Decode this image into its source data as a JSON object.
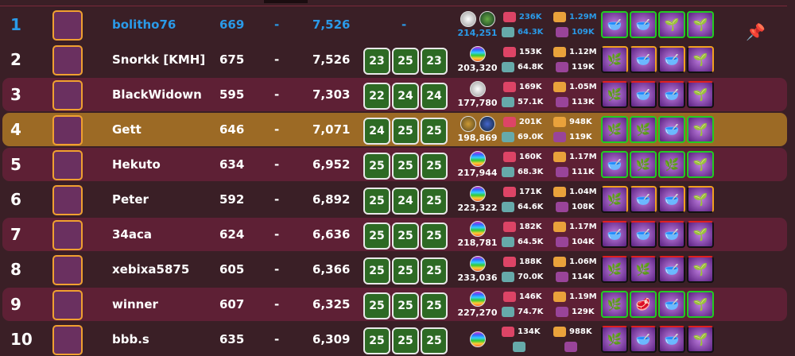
{
  "colors": {
    "row_bg": "#3a1f26",
    "row_alt": "#5e2035",
    "row_self": "#9c6a25",
    "self_text": "#2a9ae8",
    "box_green": "#2d6a24"
  },
  "rows": [
    {
      "rank": "1",
      "name": "bolitho76",
      "flag": "germany",
      "score": "669",
      "dash": "-",
      "points": "7,526",
      "boxes": [
        "-"
      ],
      "orbs": [
        "silver",
        "green"
      ],
      "orb_value": "214,251",
      "stat1": "236K",
      "stat2": "64.3K",
      "stat3": "1.29M",
      "stat4": "109K",
      "items": [
        "bowl",
        "bowl",
        "root",
        "root"
      ],
      "frame": "g",
      "self": true,
      "pinned": true
    },
    {
      "rank": "2",
      "name": "Snorkk [KMH]",
      "flag": "mexico",
      "score": "675",
      "dash": "-",
      "points": "7,526",
      "boxes": [
        "23",
        "25",
        "23"
      ],
      "orbs": [
        "rainbow"
      ],
      "orb_value": "203,320",
      "stat1": "153K",
      "stat2": "64.8K",
      "stat3": "1.12M",
      "stat4": "119K",
      "items": [
        "herb",
        "bowl",
        "bowl",
        "root"
      ],
      "frame": "o"
    },
    {
      "rank": "3",
      "name": "BlackWidown",
      "flag": "vietnam",
      "score": "595",
      "dash": "-",
      "points": "7,303",
      "boxes": [
        "22",
        "24",
        "24"
      ],
      "orbs": [
        "silver"
      ],
      "orb_value": "177,780",
      "stat1": "169K",
      "stat2": "57.1K",
      "stat3": "1.05M",
      "stat4": "113K",
      "items": [
        "herb",
        "bowl",
        "bowl",
        "root"
      ],
      "frame": "r"
    },
    {
      "rank": "4",
      "name": "Gett",
      "flag": "turkey",
      "score": "646",
      "dash": "-",
      "points": "7,071",
      "boxes": [
        "24",
        "25",
        "25"
      ],
      "orbs": [
        "gold",
        "blue"
      ],
      "orb_value": "198,869",
      "stat1": "201K",
      "stat2": "69.0K",
      "stat3": "948K",
      "stat4": "119K",
      "items": [
        "herb",
        "herb",
        "bowl",
        "root"
      ],
      "frame": "g",
      "highlight": true
    },
    {
      "rank": "5",
      "name": "Hekuto",
      "flag": "chile",
      "score": "634",
      "dash": "-",
      "points": "6,952",
      "boxes": [
        "25",
        "25",
        "25"
      ],
      "orbs": [
        "rainbow"
      ],
      "orb_value": "217,944",
      "stat1": "160K",
      "stat2": "68.3K",
      "stat3": "1.17M",
      "stat4": "111K",
      "items": [
        "bowl",
        "herb",
        "herb",
        "root"
      ],
      "frame": "g"
    },
    {
      "rank": "6",
      "name": "Peter",
      "flag": "france",
      "score": "592",
      "dash": "-",
      "points": "6,892",
      "boxes": [
        "25",
        "24",
        "25"
      ],
      "orbs": [
        "rainbow"
      ],
      "orb_value": "223,322",
      "stat1": "171K",
      "stat2": "64.6K",
      "stat3": "1.04M",
      "stat4": "108K",
      "items": [
        "herb",
        "bowl",
        "bowl",
        "root"
      ],
      "frame": "o"
    },
    {
      "rank": "7",
      "name": "34aca",
      "flag": "mexico",
      "score": "624",
      "dash": "-",
      "points": "6,636",
      "boxes": [
        "25",
        "25",
        "25"
      ],
      "orbs": [
        "rainbow"
      ],
      "orb_value": "218,781",
      "stat1": "182K",
      "stat2": "64.5K",
      "stat3": "1.17M",
      "stat4": "104K",
      "items": [
        "bowl",
        "bowl",
        "bowl",
        "root"
      ],
      "frame": "r"
    },
    {
      "rank": "8",
      "name": "xebixa5875",
      "flag": "usa",
      "score": "605",
      "dash": "-",
      "points": "6,366",
      "boxes": [
        "25",
        "25",
        "25"
      ],
      "orbs": [
        "rainbow"
      ],
      "orb_value": "233,036",
      "stat1": "188K",
      "stat2": "70.0K",
      "stat3": "1.06M",
      "stat4": "114K",
      "items": [
        "herb",
        "herb",
        "bowl",
        "root"
      ],
      "frame": "r"
    },
    {
      "rank": "9",
      "name": "winner",
      "flag": "india",
      "score": "607",
      "dash": "-",
      "points": "6,325",
      "boxes": [
        "25",
        "25",
        "25"
      ],
      "orbs": [
        "rainbow"
      ],
      "orb_value": "227,270",
      "stat1": "146K",
      "stat2": "74.7K",
      "stat3": "1.19M",
      "stat4": "129K",
      "items": [
        "herb",
        "meat",
        "bowl",
        "root"
      ],
      "frame": "g"
    },
    {
      "rank": "10",
      "name": "bbb.s",
      "flag": "japan",
      "score": "635",
      "dash": "-",
      "points": "6,309",
      "boxes": [
        "25",
        "25",
        "25"
      ],
      "orbs": [
        "rainbow"
      ],
      "orb_value": "",
      "stat1": "134K",
      "stat2": "",
      "stat3": "988K",
      "stat4": "",
      "items": [
        "herb",
        "bowl",
        "bowl",
        "root"
      ],
      "frame": "r"
    }
  ]
}
